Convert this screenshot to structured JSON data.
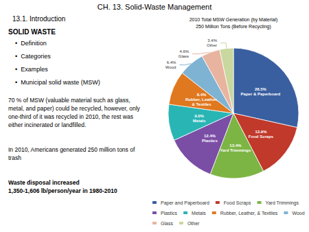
{
  "chart_data": {
    "type": "pie",
    "title": "CH. 13. Solid-Waste Management",
    "subtitle": "13.1. Introduction",
    "annotations": [
      "SOLID WASTE",
      "•  Definition",
      "•  Categories",
      "•  Examples",
      "•  Municipal solid waste (MSW)",
      "70 % of MSW (valuable material such as glass,\nmetal, and paper) could be recycled, however, only\none-third of it was recycled in 2010, the rest was\neither incinerated or landfilled.",
      "In 2010, Americans generated 250 million tons of\ntrash",
      "Waste disposal increased\n1,350-1,606 lb/person/year in 1980-2010",
      "2010 Total MSW Generation (by Material)",
      "250 Million Tons (Before Recycling)"
    ],
    "categories": [
      "Paper and Paperboard",
      "Food Scraps",
      "Yard Trimmings",
      "Plastics",
      "Metals",
      "Rubber, Leather, & Textiles",
      "Wood",
      "Glass",
      "Other"
    ],
    "values": [
      28.5,
      13.9,
      13.4,
      12.4,
      9.0,
      8.4,
      6.4,
      4.6,
      3.4
    ],
    "value_labels": [
      "28.5%\nPaper & Paperboard",
      "13.9%\nFood Scraps",
      "13.4%\nYard Trimmings",
      "12.4%\nPlastics",
      "9.0%\nMetals",
      "8.4%\nRubber, Leather,\n& Textiles",
      "6.4%\nWood",
      "4.6%\nGlass",
      "3.4%\nOther"
    ],
    "colors": [
      "#3a5fa0",
      "#c0392b",
      "#7db544",
      "#7b4ea6",
      "#2ab5b5",
      "#e07820",
      "#7fb3d3",
      "#e8b4a0",
      "#c8d89e"
    ],
    "data_labels": true,
    "legend": "bottom"
  }
}
